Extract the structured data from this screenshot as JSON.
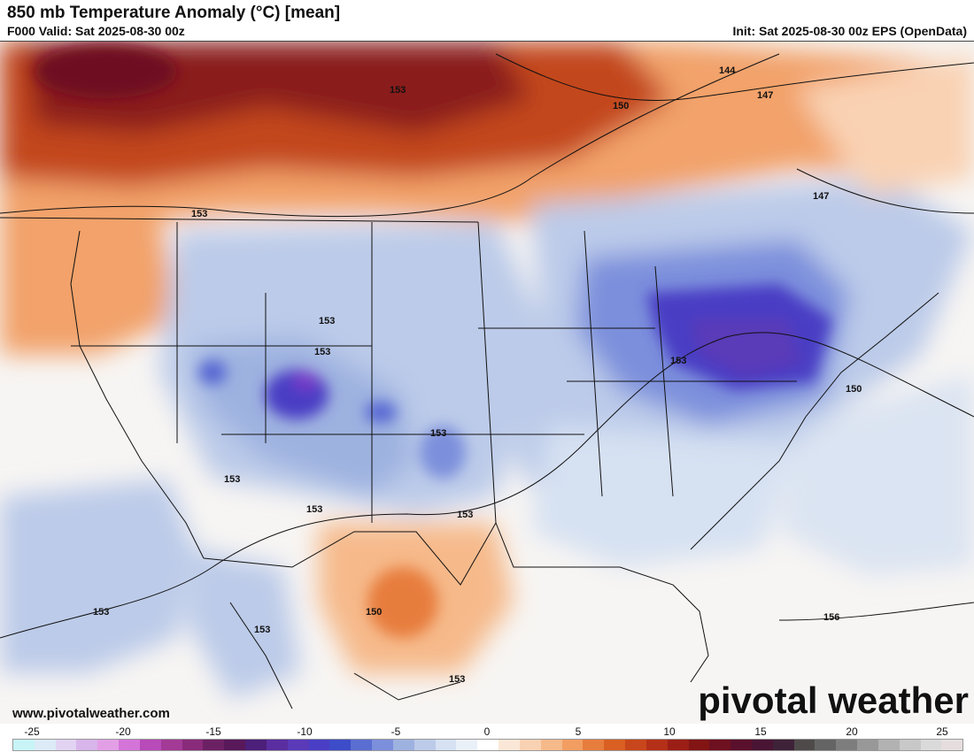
{
  "header": {
    "title": "850 mb Temperature Anomaly (°C) [mean]",
    "valid": "F000 Valid: Sat 2025-08-30 00z",
    "init": "Init: Sat 2025-08-30 00z EPS (OpenData)"
  },
  "map": {
    "contour_labels": [
      "144",
      "147",
      "150",
      "153",
      "156"
    ],
    "colors": {
      "very_warm": "#7a1a1a",
      "warm": "#c3471f",
      "mild_warm": "#f2a26a",
      "slight_warm": "#fbdcc5",
      "neutral": "#f7f5f3",
      "slight_cool": "#dbe4f2",
      "cool": "#9eb2e0",
      "cold": "#5465d2",
      "very_cold": "#3a3ab8",
      "coldest": "#7a3ac8"
    }
  },
  "footer": {
    "website": "www.pivotalweather.com",
    "brand": "pivotal weather"
  },
  "legend": {
    "ticks": [
      "-25",
      "-20",
      "-15",
      "-10",
      "-5",
      "0",
      "5",
      "10",
      "15",
      "20",
      "25"
    ],
    "colors": [
      "#c8f4f8",
      "#dcebf7",
      "#e2d3f2",
      "#d8b5ea",
      "#e39fe6",
      "#d474d8",
      "#b84ab9",
      "#a23a96",
      "#8a2a7a",
      "#6c2064",
      "#58185a",
      "#4c1f7a",
      "#5a2ea0",
      "#5a3ab8",
      "#4a3ec4",
      "#3d4cc8",
      "#5a6ed2",
      "#7b8fdc",
      "#9eb2e0",
      "#bccbe9",
      "#d6e1f2",
      "#eaf0f8",
      "#ffffff",
      "#fbe7d7",
      "#f9d2b3",
      "#f6b98a",
      "#f29d62",
      "#e77d3d",
      "#d95f22",
      "#c8461b",
      "#b53018",
      "#9b1e16",
      "#821414",
      "#6e1020",
      "#5a102c",
      "#4a1434",
      "#3e2238",
      "#4f4a4a",
      "#646464",
      "#7d7d7d",
      "#989898",
      "#b2b2b2",
      "#c8c8c8",
      "#dadada",
      "#e6dede"
    ]
  }
}
